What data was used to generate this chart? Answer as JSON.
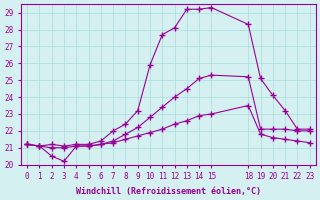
{
  "xlabel": "Windchill (Refroidissement éolien,°C)",
  "ylabel": "",
  "bg_color": "#d4f0f0",
  "line_color": "#990099",
  "grid_color": "#aadddd",
  "xlim": [
    -0.5,
    23.5
  ],
  "ylim": [
    20,
    29.5
  ],
  "yticks": [
    20,
    21,
    22,
    23,
    24,
    25,
    26,
    27,
    28,
    29
  ],
  "xticks": [
    0,
    1,
    2,
    3,
    4,
    5,
    6,
    7,
    8,
    9,
    10,
    11,
    12,
    13,
    14,
    15,
    18,
    19,
    20,
    21,
    22,
    23
  ],
  "series1_x": [
    0,
    1,
    2,
    3,
    4,
    5,
    6,
    7,
    8,
    9,
    10,
    11,
    12,
    13,
    14,
    15,
    18,
    19,
    20,
    21,
    22,
    23
  ],
  "series1_y": [
    21.2,
    21.1,
    21.2,
    21.1,
    21.2,
    21.2,
    21.4,
    22.0,
    22.4,
    23.2,
    25.9,
    27.7,
    28.1,
    29.2,
    29.2,
    29.3,
    28.3,
    25.1,
    24.1,
    23.2,
    22.1,
    22.1
  ],
  "series2_x": [
    0,
    1,
    2,
    3,
    4,
    5,
    6,
    7,
    8,
    9,
    10,
    11,
    12,
    13,
    14,
    15,
    18,
    19,
    20,
    21,
    22,
    23
  ],
  "series2_y": [
    21.2,
    21.1,
    20.5,
    20.2,
    21.1,
    21.1,
    21.2,
    21.4,
    21.8,
    22.2,
    22.8,
    23.4,
    24.0,
    24.5,
    25.1,
    25.3,
    25.2,
    22.1,
    22.1,
    22.1,
    22.0,
    22.0
  ],
  "series3_x": [
    0,
    1,
    2,
    3,
    4,
    5,
    6,
    7,
    8,
    9,
    10,
    11,
    12,
    13,
    14,
    15,
    18,
    19,
    20,
    21,
    22,
    23
  ],
  "series3_y": [
    21.2,
    21.1,
    21.0,
    21.0,
    21.1,
    21.1,
    21.2,
    21.3,
    21.5,
    21.7,
    21.9,
    22.1,
    22.4,
    22.6,
    22.9,
    23.0,
    23.5,
    21.8,
    21.6,
    21.5,
    21.4,
    21.3
  ]
}
